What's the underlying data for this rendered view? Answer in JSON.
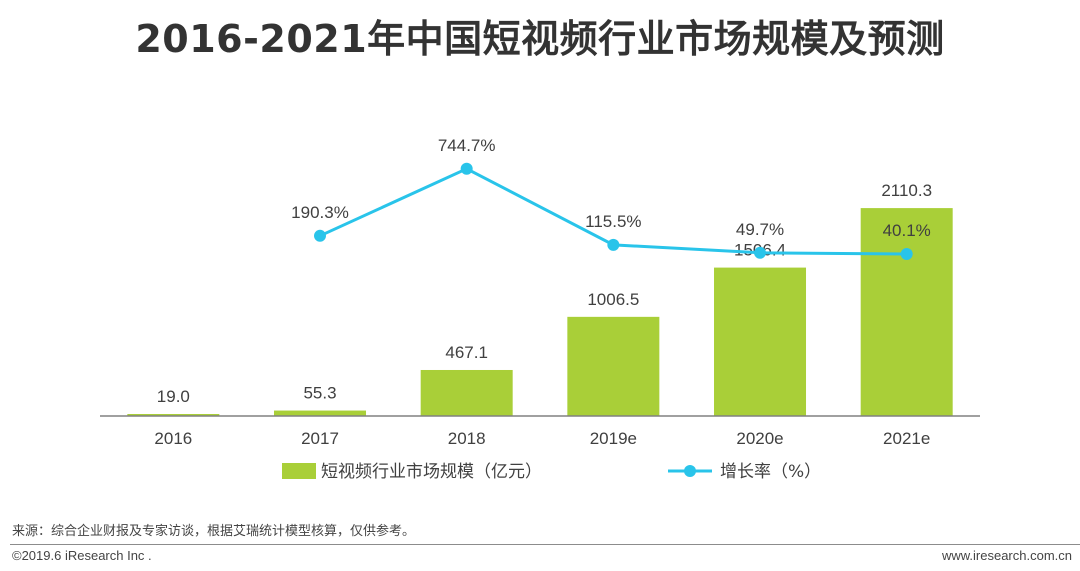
{
  "title": "2016-2021年中国短视频行业市场规模及预测",
  "source_note": "来源：综合企业财报及专家访谈，根据艾瑞统计模型核算，仅供参考。",
  "copyright": "©2019.6 iResearch Inc .",
  "website": "www.iresearch.com.cn",
  "colors": {
    "bar": "#a9cf38",
    "line": "#29c4ea",
    "axis": "#808080",
    "text": "#404040"
  },
  "chart_data": {
    "type": "bar",
    "title": "2016-2021年中国短视频行业市场规模及预测",
    "categories": [
      "2016",
      "2017",
      "2018",
      "2019e",
      "2020e",
      "2021e"
    ],
    "series": [
      {
        "name": "短视频行业市场规模（亿元）",
        "type": "bar",
        "values": [
          19.0,
          55.3,
          467.1,
          1006.5,
          1506.4,
          2110.3
        ],
        "labels": [
          "19.0",
          "55.3",
          "467.1",
          "1006.5",
          "1506.4",
          "2110.3"
        ]
      },
      {
        "name": "增长率（%）",
        "type": "line",
        "values": [
          null,
          190.3,
          744.7,
          115.5,
          49.7,
          40.1
        ],
        "labels": [
          "",
          "190.3%",
          "744.7%",
          "115.5%",
          "49.7%",
          "40.1%"
        ]
      }
    ],
    "bar_ylim": [
      0,
      2700
    ],
    "line_ylim": [
      -1300,
      900
    ],
    "legend": "bottom",
    "grid": false
  }
}
